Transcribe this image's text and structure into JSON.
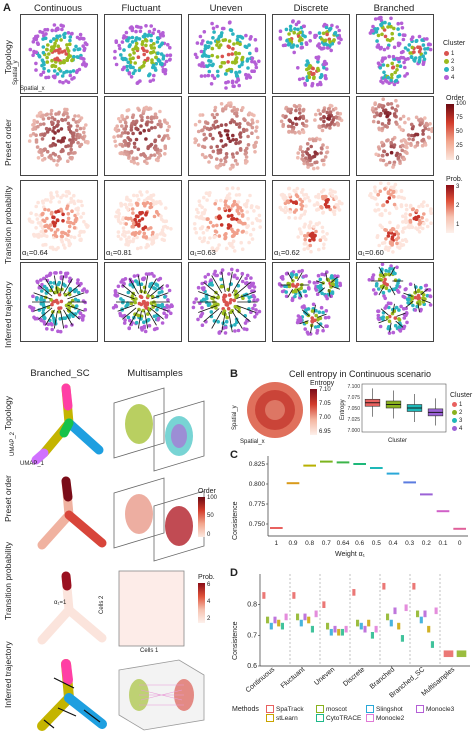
{
  "panelA": {
    "label": "A",
    "columns": [
      "Continuous",
      "Fluctuant",
      "Uneven",
      "Discrete",
      "Branched"
    ],
    "rows": [
      "Topology",
      "Preset order",
      "Transition probability",
      "Inferred trajectory"
    ],
    "axes": {
      "x": "Spatial_x",
      "y": "Spatial_y"
    },
    "alphas": [
      "α₁=0.64",
      "α₁=0.81",
      "α₁=0.63",
      "α₁=0.62",
      "α₁=0.60"
    ],
    "cluster_legend": {
      "title": "Cluster",
      "items": [
        "1",
        "2",
        "3",
        "4"
      ],
      "colors": [
        "#d9534f",
        "#9bbb1e",
        "#2bb3c0",
        "#b45fd6"
      ]
    },
    "order_legend": {
      "title": "Order",
      "ticks": [
        "100",
        "75",
        "50",
        "25",
        "0"
      ]
    },
    "prob_legend": {
      "title": "Prob.",
      "ticks": [
        "3",
        "2",
        "1"
      ]
    }
  },
  "panelLower": {
    "columns": [
      "Branched_SC",
      "Multisamples"
    ],
    "rows": [
      "Topology",
      "Preset order",
      "Transition probability",
      "Inferred trajectory"
    ],
    "umap": {
      "x": "UMAP_1",
      "y": "UMAP_2"
    },
    "spatial": {
      "x": "Spatial_x",
      "y": "Spatial_y"
    },
    "alpha": "α₁=1",
    "order_legend": {
      "title": "Order",
      "ticks": [
        "100",
        "50",
        "0"
      ]
    },
    "prob_legend": {
      "title": "Prob.",
      "ticks": [
        "6",
        "4",
        "2"
      ]
    },
    "cells": {
      "x": "Cells 1",
      "y": "Cells 2"
    }
  },
  "panelB": {
    "label": "B",
    "title": "Cell entropy in Continuous scenario",
    "entropy_legend": {
      "title": "Entropy",
      "ticks": [
        "7.10",
        "7.05",
        "7.00",
        "6.95"
      ]
    },
    "axes": {
      "x": "Spatial_x",
      "y": "Spatial_y"
    },
    "box": {
      "ylabel": "Entropy",
      "xlabel": "Cluster",
      "yticks": [
        "7.100",
        "7.075",
        "7.050",
        "7.025",
        "7.000"
      ]
    },
    "cluster_legend": {
      "title": "Cluster",
      "items": [
        "1",
        "2",
        "3",
        "4"
      ],
      "colors": [
        "#e8615f",
        "#8ab21e",
        "#1eb8b8",
        "#9b62d6"
      ]
    }
  },
  "panelC": {
    "label": "C",
    "ylabel": "Consistence",
    "xlabel": "Weight α₁",
    "yticks": [
      "0.825",
      "0.800",
      "0.775",
      "0.750"
    ]
  },
  "panelD": {
    "label": "D",
    "ylabel": "Consistence",
    "yticks": [
      "0.8",
      "0.7",
      "0.6"
    ],
    "groups": [
      "Continuous",
      "Fluctuant",
      "Uneven",
      "Discrete",
      "Branched",
      "Branched_SC",
      "Multisamples"
    ],
    "methods_title": "Methods",
    "methods": [
      {
        "name": "SpaTrack",
        "color": "#e8615f"
      },
      {
        "name": "moscot",
        "color": "#8ab21e"
      },
      {
        "name": "Slingshot",
        "color": "#2aa8d8"
      },
      {
        "name": "Monocle3",
        "color": "#b45fd6"
      },
      {
        "name": "stLearn",
        "color": "#c9a400"
      },
      {
        "name": "CytoTRACE",
        "color": "#1eb88a"
      },
      {
        "name": "Monocle2",
        "color": "#e07ad6"
      }
    ]
  },
  "chart_data": [
    {
      "type": "box",
      "title": "Cell entropy in Continuous scenario",
      "xlabel": "Cluster",
      "ylabel": "Entropy",
      "categories": [
        "1",
        "2",
        "3",
        "4"
      ],
      "median": [
        7.062,
        7.058,
        7.05,
        7.04
      ],
      "q1": [
        7.054,
        7.05,
        7.042,
        7.032
      ],
      "q3": [
        7.07,
        7.066,
        7.058,
        7.048
      ],
      "whisker_low": [
        7.03,
        7.026,
        7.018,
        7.01
      ],
      "whisker_high": [
        7.095,
        7.09,
        7.082,
        7.072
      ],
      "ylim": [
        6.995,
        7.105
      ]
    },
    {
      "type": "line",
      "xlabel": "Weight α₁",
      "ylabel": "Consistence",
      "categories": [
        "1",
        "0.9",
        "0.8",
        "0.7",
        "0.64",
        "0.6",
        "0.5",
        "0.4",
        "0.3",
        "0.2",
        "0.1",
        "0"
      ],
      "values": [
        0.745,
        0.801,
        0.823,
        0.828,
        0.827,
        0.825,
        0.82,
        0.813,
        0.802,
        0.787,
        0.766,
        0.744
      ],
      "ylim": [
        0.735,
        0.835
      ]
    },
    {
      "type": "box",
      "ylabel": "Consistence",
      "categories": [
        "Continuous",
        "Fluctuant",
        "Uneven",
        "Discrete",
        "Branched",
        "Branched_SC",
        "Multisamples"
      ],
      "series": [
        {
          "name": "SpaTrack",
          "values": [
            0.83,
            0.83,
            0.8,
            0.84,
            0.86,
            0.86,
            0.64
          ]
        },
        {
          "name": "moscot",
          "values": [
            0.75,
            0.76,
            0.73,
            0.74,
            0.76,
            0.77,
            0.64
          ]
        },
        {
          "name": "Slingshot",
          "values": [
            0.73,
            0.74,
            0.71,
            0.73,
            0.74,
            0.75,
            null
          ]
        },
        {
          "name": "Monocle3",
          "values": [
            0.75,
            0.76,
            0.72,
            0.72,
            0.78,
            0.77,
            null
          ]
        },
        {
          "name": "stLearn",
          "values": [
            0.74,
            0.75,
            0.71,
            0.74,
            0.73,
            0.72,
            null
          ]
        },
        {
          "name": "CytoTRACE",
          "values": [
            0.73,
            0.72,
            0.71,
            0.7,
            0.69,
            0.67,
            null
          ]
        },
        {
          "name": "Monocle2",
          "values": [
            0.76,
            0.77,
            0.72,
            0.72,
            0.79,
            0.78,
            null
          ]
        }
      ],
      "ylim": [
        0.6,
        0.9
      ]
    }
  ]
}
